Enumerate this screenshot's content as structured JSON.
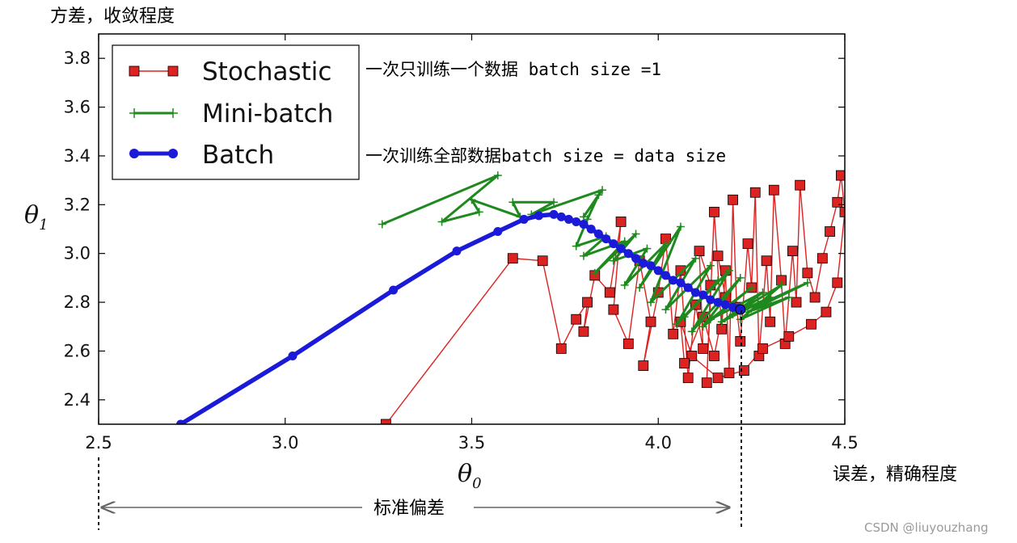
{
  "annotations": {
    "top_left": "方差，收敛程度",
    "stochastic_note": "一次只训练一个数据 batch size =1",
    "batch_note": "一次训练全部数据batch size = data size",
    "right_note": "误差，精确程度",
    "bottom_note": "标准偏差",
    "watermark": "CSDN @liuyouzhang"
  },
  "chart_data": {
    "type": "line",
    "title": "",
    "xlabel": "θ",
    "xlabel_sub": "0",
    "ylabel": "θ",
    "ylabel_sub": "1",
    "xlim": [
      2.5,
      4.5
    ],
    "ylim": [
      2.3,
      3.9
    ],
    "xticks": [
      "2.5",
      "3.0",
      "3.5",
      "4.0",
      "4.5"
    ],
    "yticks": [
      "2.4",
      "2.6",
      "2.8",
      "3.0",
      "3.2",
      "3.4",
      "3.6",
      "3.8"
    ],
    "legend_position": "top-left",
    "grid": false,
    "series": [
      {
        "name": "Stochastic",
        "color": "#dd2222",
        "marker": "square",
        "points": [
          [
            3.27,
            2.3
          ],
          [
            3.61,
            2.98
          ],
          [
            3.69,
            2.97
          ],
          [
            3.74,
            2.61
          ],
          [
            3.78,
            2.73
          ],
          [
            3.81,
            2.8
          ],
          [
            3.8,
            2.68
          ],
          [
            3.83,
            2.91
          ],
          [
            3.87,
            2.84
          ],
          [
            3.9,
            3.13
          ],
          [
            3.88,
            2.77
          ],
          [
            3.92,
            2.63
          ],
          [
            3.95,
            2.97
          ],
          [
            3.98,
            2.72
          ],
          [
            3.96,
            2.54
          ],
          [
            4.0,
            2.84
          ],
          [
            4.02,
            3.06
          ],
          [
            4.04,
            2.67
          ],
          [
            4.06,
            2.93
          ],
          [
            4.08,
            2.49
          ],
          [
            4.1,
            2.79
          ],
          [
            4.12,
            2.61
          ],
          [
            4.11,
            3.01
          ],
          [
            4.14,
            2.87
          ],
          [
            4.13,
            2.47
          ],
          [
            4.15,
            3.17
          ],
          [
            4.17,
            2.69
          ],
          [
            4.18,
            2.93
          ],
          [
            4.19,
            2.51
          ],
          [
            4.2,
            3.22
          ],
          [
            4.21,
            2.78
          ],
          [
            4.22,
            2.64
          ],
          [
            4.24,
            3.04
          ],
          [
            4.25,
            2.86
          ],
          [
            4.26,
            3.25
          ],
          [
            4.27,
            2.58
          ],
          [
            4.29,
            2.97
          ],
          [
            4.3,
            2.72
          ],
          [
            4.31,
            3.26
          ],
          [
            4.33,
            2.89
          ],
          [
            4.34,
            2.63
          ],
          [
            4.36,
            3.01
          ],
          [
            4.37,
            2.8
          ],
          [
            4.38,
            3.28
          ],
          [
            4.4,
            2.92
          ],
          [
            4.42,
            2.82
          ],
          [
            4.44,
            2.98
          ],
          [
            4.46,
            3.09
          ],
          [
            4.48,
            3.21
          ],
          [
            4.49,
            3.32
          ],
          [
            4.5,
            3.17
          ],
          [
            4.48,
            2.88
          ],
          [
            4.45,
            2.76
          ],
          [
            4.41,
            2.71
          ],
          [
            4.35,
            2.66
          ],
          [
            4.28,
            2.61
          ],
          [
            4.23,
            2.52
          ],
          [
            4.16,
            2.49
          ],
          [
            4.09,
            2.58
          ],
          [
            4.06,
            2.72
          ],
          [
            4.07,
            2.55
          ],
          [
            4.12,
            2.74
          ],
          [
            4.15,
            2.58
          ],
          [
            4.18,
            2.82
          ],
          [
            4.16,
            2.99
          ]
        ]
      },
      {
        "name": "Mini-batch",
        "color": "#1e8a1e",
        "marker": "plus",
        "points": [
          [
            3.26,
            3.12
          ],
          [
            3.57,
            3.32
          ],
          [
            3.42,
            3.13
          ],
          [
            3.52,
            3.17
          ],
          [
            3.5,
            3.22
          ],
          [
            3.63,
            3.15
          ],
          [
            3.61,
            3.21
          ],
          [
            3.72,
            3.21
          ],
          [
            3.66,
            3.16
          ],
          [
            3.85,
            3.26
          ],
          [
            3.8,
            3.15
          ],
          [
            3.84,
            3.24
          ],
          [
            3.81,
            3.14
          ],
          [
            3.78,
            3.03
          ],
          [
            3.86,
            3.07
          ],
          [
            3.8,
            2.99
          ],
          [
            3.91,
            3.05
          ],
          [
            3.83,
            2.92
          ],
          [
            3.94,
            3.08
          ],
          [
            3.88,
            2.97
          ],
          [
            3.97,
            3.02
          ],
          [
            3.91,
            2.87
          ],
          [
            4.02,
            3.04
          ],
          [
            3.95,
            2.86
          ],
          [
            4.06,
            3.11
          ],
          [
            3.98,
            2.8
          ],
          [
            4.1,
            2.98
          ],
          [
            4.02,
            2.77
          ],
          [
            4.14,
            2.95
          ],
          [
            4.05,
            2.71
          ],
          [
            4.16,
            2.89
          ],
          [
            4.07,
            2.74
          ],
          [
            4.19,
            2.93
          ],
          [
            4.09,
            2.68
          ],
          [
            4.22,
            2.9
          ],
          [
            4.12,
            2.7
          ],
          [
            4.25,
            2.86
          ],
          [
            4.14,
            2.73
          ],
          [
            4.28,
            2.84
          ],
          [
            4.17,
            2.72
          ],
          [
            4.3,
            2.82
          ],
          [
            4.2,
            2.75
          ],
          [
            4.33,
            2.87
          ],
          [
            4.22,
            2.73
          ],
          [
            4.35,
            2.82
          ],
          [
            4.24,
            2.76
          ],
          [
            4.4,
            2.88
          ],
          [
            4.27,
            2.79
          ],
          [
            4.21,
            2.77
          ]
        ]
      },
      {
        "name": "Batch",
        "color": "#1a1ad8",
        "marker": "circle",
        "points": [
          [
            2.72,
            2.3
          ],
          [
            3.02,
            2.58
          ],
          [
            3.29,
            2.85
          ],
          [
            3.46,
            3.01
          ],
          [
            3.57,
            3.09
          ],
          [
            3.64,
            3.14
          ],
          [
            3.68,
            3.155
          ],
          [
            3.72,
            3.16
          ],
          [
            3.74,
            3.15
          ],
          [
            3.76,
            3.14
          ],
          [
            3.78,
            3.13
          ],
          [
            3.8,
            3.12
          ],
          [
            3.82,
            3.1
          ],
          [
            3.84,
            3.08
          ],
          [
            3.86,
            3.06
          ],
          [
            3.88,
            3.04
          ],
          [
            3.9,
            3.02
          ],
          [
            3.92,
            3.0
          ],
          [
            3.94,
            2.98
          ],
          [
            3.96,
            2.96
          ],
          [
            3.98,
            2.95
          ],
          [
            4.0,
            2.93
          ],
          [
            4.02,
            2.91
          ],
          [
            4.04,
            2.89
          ],
          [
            4.06,
            2.88
          ],
          [
            4.08,
            2.86
          ],
          [
            4.1,
            2.84
          ],
          [
            4.12,
            2.83
          ],
          [
            4.14,
            2.81
          ],
          [
            4.16,
            2.8
          ],
          [
            4.18,
            2.79
          ],
          [
            4.2,
            2.78
          ],
          [
            4.215,
            2.775
          ],
          [
            4.22,
            2.77
          ]
        ]
      }
    ]
  }
}
